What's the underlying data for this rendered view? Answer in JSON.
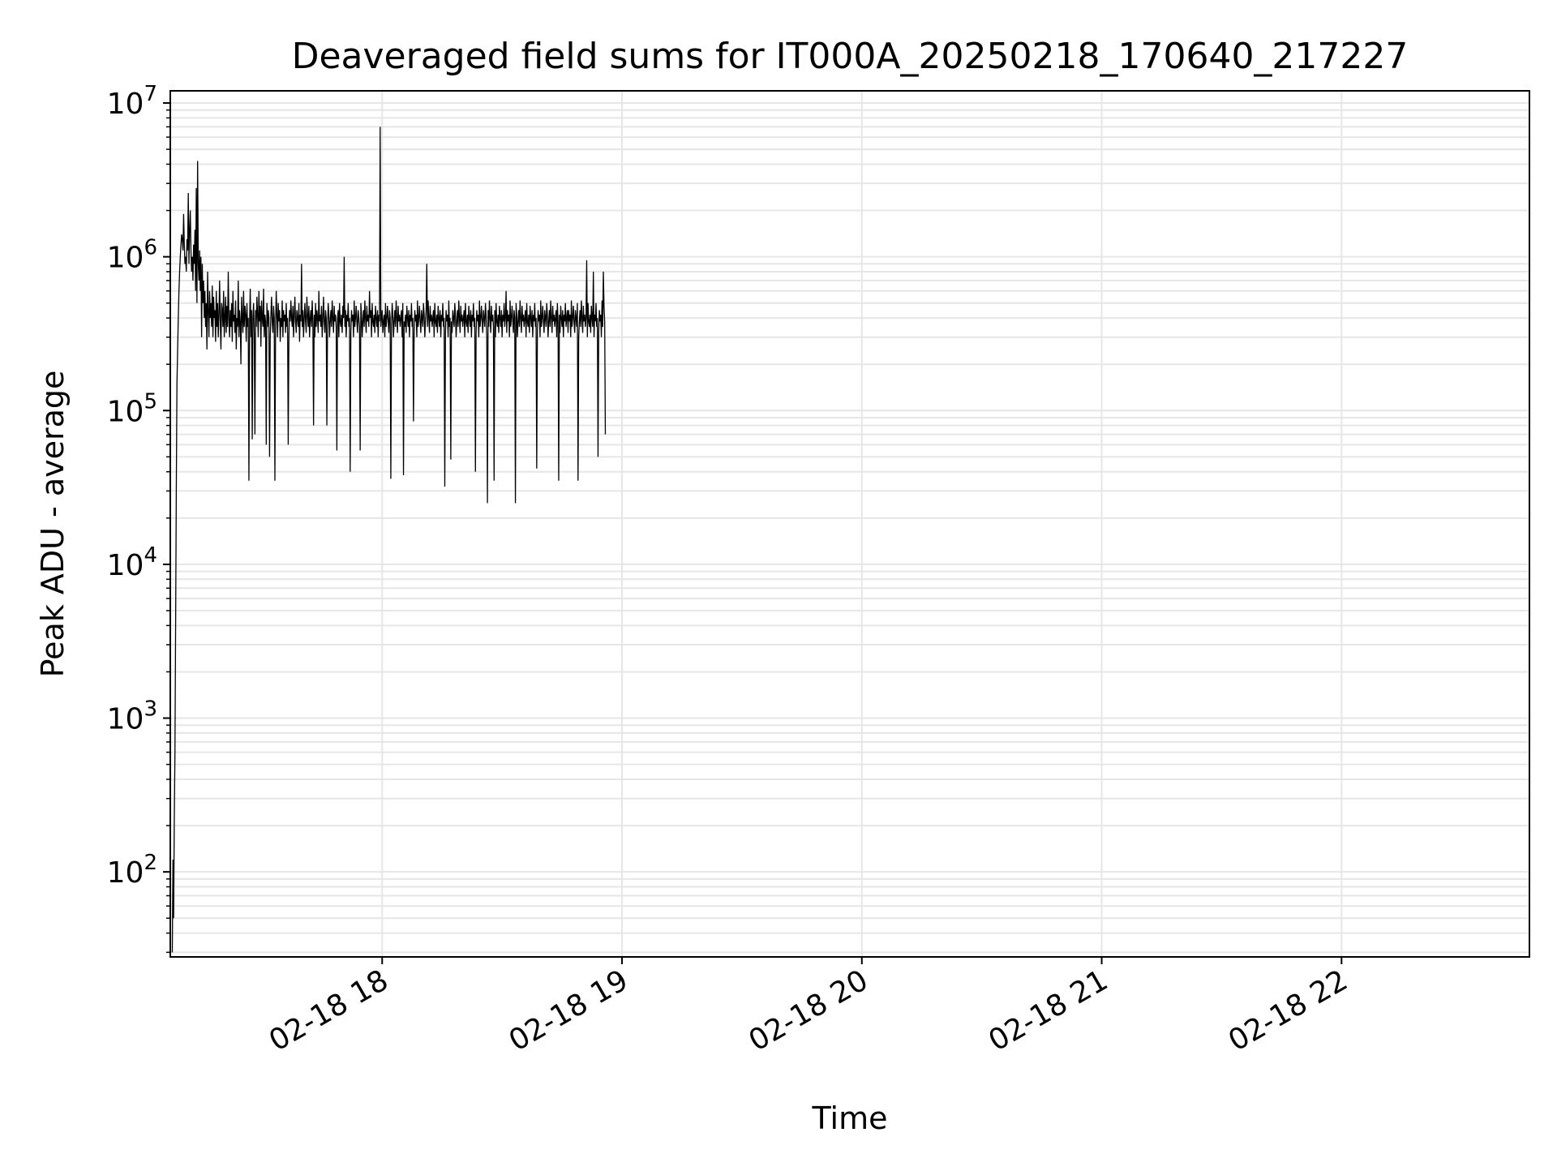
{
  "chart_data": {
    "type": "line",
    "title": "Deaveraged field sums for IT000A_20250218_170640_217227",
    "xlabel": "Time",
    "ylabel": "Peak ADU - average",
    "yscale": "log",
    "xlim": [
      "2025-02-18T17:07:00",
      "2025-02-18T22:47:00"
    ],
    "ylim": [
      28,
      12000000
    ],
    "x_ticks": [
      {
        "value": "2025-02-18T18:00:00",
        "label": "02-18 18"
      },
      {
        "value": "2025-02-18T19:00:00",
        "label": "02-18 19"
      },
      {
        "value": "2025-02-18T20:00:00",
        "label": "02-18 20"
      },
      {
        "value": "2025-02-18T21:00:00",
        "label": "02-18 21"
      },
      {
        "value": "2025-02-18T22:00:00",
        "label": "02-18 22"
      }
    ],
    "y_ticks": [
      {
        "value": 100,
        "base": "10",
        "exp": "2"
      },
      {
        "value": 1000,
        "base": "10",
        "exp": "3"
      },
      {
        "value": 10000,
        "base": "10",
        "exp": "4"
      },
      {
        "value": 100000,
        "base": "10",
        "exp": "5"
      },
      {
        "value": 1000000,
        "base": "10",
        "exp": "6"
      },
      {
        "value": 10000000,
        "base": "10",
        "exp": "7"
      }
    ],
    "grid": true,
    "minor_grid": true,
    "line_color": "#000000",
    "grid_color": "#e6e6e6",
    "series": [
      {
        "start": "2025-02-18T17:07:30",
        "interval_seconds": 10,
        "values": [
          30,
          120,
          50,
          220,
          600,
          4000,
          30000,
          150000,
          250000,
          400000,
          600000,
          800000,
          1000000,
          1200000,
          1400000,
          1300000,
          1100000,
          1900000,
          1200000,
          900000,
          1000000,
          800000,
          1300000,
          1100000,
          2600000,
          900000,
          1500000,
          2000000,
          1100000,
          800000,
          1000000,
          700000,
          1200000,
          900000,
          1500000,
          600000,
          2800000,
          500000,
          4200000,
          900000,
          700000,
          1100000,
          600000,
          1000000,
          300000,
          900000,
          500000,
          700000,
          400000,
          600000,
          350000,
          500000,
          250000,
          800000,
          450000,
          300000,
          600000,
          400000,
          500000,
          350000,
          650000,
          300000,
          550000,
          400000,
          450000,
          280000,
          600000,
          350000,
          500000,
          300000,
          420000,
          700000,
          380000,
          250000,
          500000,
          450000,
          350000,
          600000,
          300000,
          400000,
          550000,
          320000,
          480000,
          350000,
          800000,
          400000,
          300000,
          450000,
          350000,
          500000,
          280000,
          600000,
          380000,
          420000,
          320000,
          520000,
          250000,
          400000,
          350000,
          700000,
          300000,
          450000,
          380000,
          200000,
          550000,
          400000,
          320000,
          600000,
          350000,
          480000,
          420000,
          280000,
          500000,
          350000,
          400000,
          35000,
          380000,
          620000,
          300000,
          450000,
          65000,
          400000,
          500000,
          320000,
          70000,
          450000,
          350000,
          550000,
          420000,
          300000,
          600000,
          380000,
          480000,
          260000,
          520000,
          400000,
          350000,
          620000,
          300000,
          420000,
          380000,
          60000,
          500000,
          350000,
          450000,
          400000,
          50000,
          300000,
          420000,
          550000,
          380000,
          320000,
          480000,
          400000,
          35000,
          350000,
          600000,
          420000,
          300000,
          500000,
          380000,
          450000,
          280000,
          400000,
          350000,
          520000,
          300000,
          450000,
          380000,
          420000,
          320000,
          500000,
          350000,
          400000,
          60000,
          300000,
          450000,
          380000,
          520000,
          400000,
          350000,
          480000,
          300000,
          420000,
          550000,
          380000,
          320000,
          450000,
          400000,
          350000,
          500000,
          280000,
          420000,
          380000,
          900000,
          350000,
          450000,
          300000,
          400000,
          500000,
          380000,
          320000,
          550000,
          420000,
          350000,
          480000,
          300000,
          400000,
          450000,
          350000,
          520000,
          380000,
          80000,
          420000,
          300000,
          500000,
          350000,
          450000,
          400000,
          320000,
          600000,
          380000,
          420000,
          350000,
          480000,
          300000,
          400000,
          550000,
          380000,
          320000,
          450000,
          400000,
          80000,
          350000,
          500000,
          420000,
          300000,
          380000,
          450000,
          350000,
          520000,
          400000,
          320000,
          480000,
          380000,
          420000,
          350000,
          55000,
          400000,
          450000,
          300000,
          500000,
          380000,
          350000,
          420000,
          320000,
          480000,
          400000,
          1000000,
          350000,
          450000,
          300000,
          420000,
          380000,
          500000,
          350000,
          400000,
          40000,
          320000,
          450000,
          380000,
          420000,
          300000,
          520000,
          350000,
          400000,
          480000,
          380000,
          320000,
          450000,
          400000,
          350000,
          55000,
          500000,
          420000,
          300000,
          380000,
          450000,
          350000,
          520000,
          400000,
          320000,
          480000,
          380000,
          420000,
          350000,
          600000,
          400000,
          450000,
          300000,
          500000,
          380000,
          350000,
          420000,
          320000,
          480000,
          400000,
          350000,
          450000,
          300000,
          420000,
          380000,
          7000000,
          350000,
          400000,
          450000,
          320000,
          380000,
          420000,
          300000,
          500000,
          350000,
          400000,
          480000,
          380000,
          320000,
          450000,
          400000,
          36000,
          350000,
          500000,
          420000,
          300000,
          380000,
          450000,
          350000,
          520000,
          400000,
          320000,
          480000,
          380000,
          420000,
          350000,
          400000,
          450000,
          300000,
          500000,
          38000,
          380000,
          350000,
          420000,
          320000,
          480000,
          400000,
          350000,
          450000,
          300000,
          420000,
          380000,
          500000,
          350000,
          400000,
          85000,
          320000,
          450000,
          380000,
          420000,
          300000,
          520000,
          350000,
          400000,
          480000,
          380000,
          320000,
          450000,
          400000,
          350000,
          500000,
          420000,
          300000,
          380000,
          450000,
          900000,
          350000,
          520000,
          400000,
          320000,
          480000,
          380000,
          420000,
          350000,
          400000,
          450000,
          300000,
          500000,
          380000,
          350000,
          420000,
          320000,
          480000,
          400000,
          350000,
          450000,
          300000,
          420000,
          380000,
          500000,
          350000,
          400000,
          32000,
          320000,
          450000,
          380000,
          420000,
          300000,
          520000,
          350000,
          400000,
          48000,
          380000,
          320000,
          450000,
          400000,
          350000,
          500000,
          420000,
          300000,
          380000,
          450000,
          350000,
          520000,
          400000,
          320000,
          480000,
          380000,
          420000,
          350000,
          400000,
          450000,
          300000,
          500000,
          380000,
          350000,
          420000,
          320000,
          480000,
          400000,
          350000,
          450000,
          300000,
          420000,
          380000,
          500000,
          350000,
          400000,
          40000,
          320000,
          450000,
          380000,
          420000,
          300000,
          520000,
          350000,
          400000,
          480000,
          380000,
          320000,
          450000,
          400000,
          350000,
          500000,
          420000,
          300000,
          25000,
          450000,
          350000,
          520000,
          400000,
          320000,
          480000,
          380000,
          420000,
          350000,
          35000,
          450000,
          300000,
          500000,
          380000,
          350000,
          420000,
          320000,
          480000,
          400000,
          350000,
          450000,
          300000,
          420000,
          380000,
          500000,
          350000,
          400000,
          600000,
          320000,
          450000,
          380000,
          420000,
          300000,
          520000,
          350000,
          400000,
          480000,
          380000,
          320000,
          450000,
          400000,
          25000,
          500000,
          420000,
          300000,
          380000,
          450000,
          350000,
          520000,
          400000,
          320000,
          480000,
          380000,
          420000,
          350000,
          400000,
          450000,
          300000,
          500000,
          380000,
          350000,
          420000,
          320000,
          480000,
          400000,
          350000,
          450000,
          300000,
          420000,
          380000,
          500000,
          350000,
          400000,
          42000,
          320000,
          450000,
          380000,
          420000,
          300000,
          520000,
          350000,
          400000,
          480000,
          380000,
          320000,
          450000,
          400000,
          350000,
          500000,
          420000,
          300000,
          380000,
          450000,
          350000,
          520000,
          400000,
          320000,
          480000,
          380000,
          420000,
          350000,
          400000,
          450000,
          300000,
          500000,
          380000,
          35000,
          420000,
          320000,
          480000,
          400000,
          350000,
          450000,
          300000,
          420000,
          380000,
          500000,
          350000,
          400000,
          450000,
          320000,
          450000,
          380000,
          420000,
          300000,
          520000,
          350000,
          400000,
          480000,
          380000,
          320000,
          450000,
          400000,
          350000,
          500000,
          35000,
          300000,
          380000,
          450000,
          350000,
          520000,
          400000,
          320000,
          480000,
          380000,
          420000,
          350000,
          400000,
          950000,
          300000,
          500000,
          380000,
          350000,
          420000,
          320000,
          480000,
          400000,
          350000,
          800000,
          300000,
          420000,
          380000,
          500000,
          350000,
          400000,
          50000,
          320000,
          450000,
          380000,
          420000,
          300000,
          520000,
          350000,
          800000,
          480000,
          380000,
          70000
        ]
      }
    ]
  }
}
